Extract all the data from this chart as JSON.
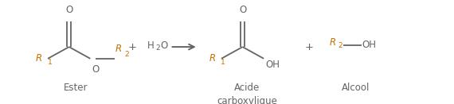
{
  "bg_color": "#ffffff",
  "line_color": "#646464",
  "text_color": "#646464",
  "orange_color": "#c87000",
  "figsize": [
    5.7,
    1.31
  ],
  "dpi": 100,
  "ester_label": "Ester",
  "acid_label1": "Acide",
  "acid_label2": "carboxylique",
  "alcohol_label": "Alcool",
  "xlim": [
    0,
    10
  ],
  "ylim": [
    0,
    2.2
  ]
}
